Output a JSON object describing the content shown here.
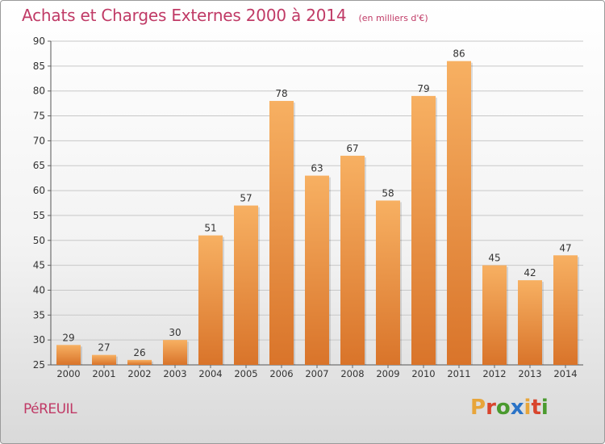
{
  "header": {
    "title": "Achats et Charges Externes 2000 à 2014",
    "subtitle": "(en milliers d'€)"
  },
  "footer": {
    "commune": "PéREUIL",
    "logo": {
      "letters": [
        "P",
        "r",
        "o",
        "x",
        "i",
        "t",
        "i"
      ],
      "colors": [
        "#e8a53a",
        "#d8452d",
        "#4a9a2e",
        "#2a73c7",
        "#e8a53a",
        "#d8452d",
        "#4a9a2e"
      ],
      "text": "Proxiti"
    }
  },
  "chart_data": {
    "type": "bar",
    "title": "Achats et Charges Externes 2000 à 2014",
    "subtitle": "(en milliers d'€)",
    "categories": [
      "2000",
      "2001",
      "2002",
      "2003",
      "2004",
      "2005",
      "2006",
      "2007",
      "2008",
      "2009",
      "2010",
      "2011",
      "2012",
      "2013",
      "2014"
    ],
    "values": [
      29,
      27,
      26,
      30,
      51,
      57,
      78,
      63,
      67,
      58,
      79,
      86,
      45,
      42,
      47
    ],
    "ylim": [
      25,
      90
    ],
    "yticks": [
      25,
      30,
      35,
      40,
      45,
      50,
      55,
      60,
      65,
      70,
      75,
      80,
      85,
      90
    ],
    "grid": true,
    "bar_color": "#f0953a",
    "bar_color_light": "#f7b062",
    "bar_color_dark": "#d9742a"
  }
}
